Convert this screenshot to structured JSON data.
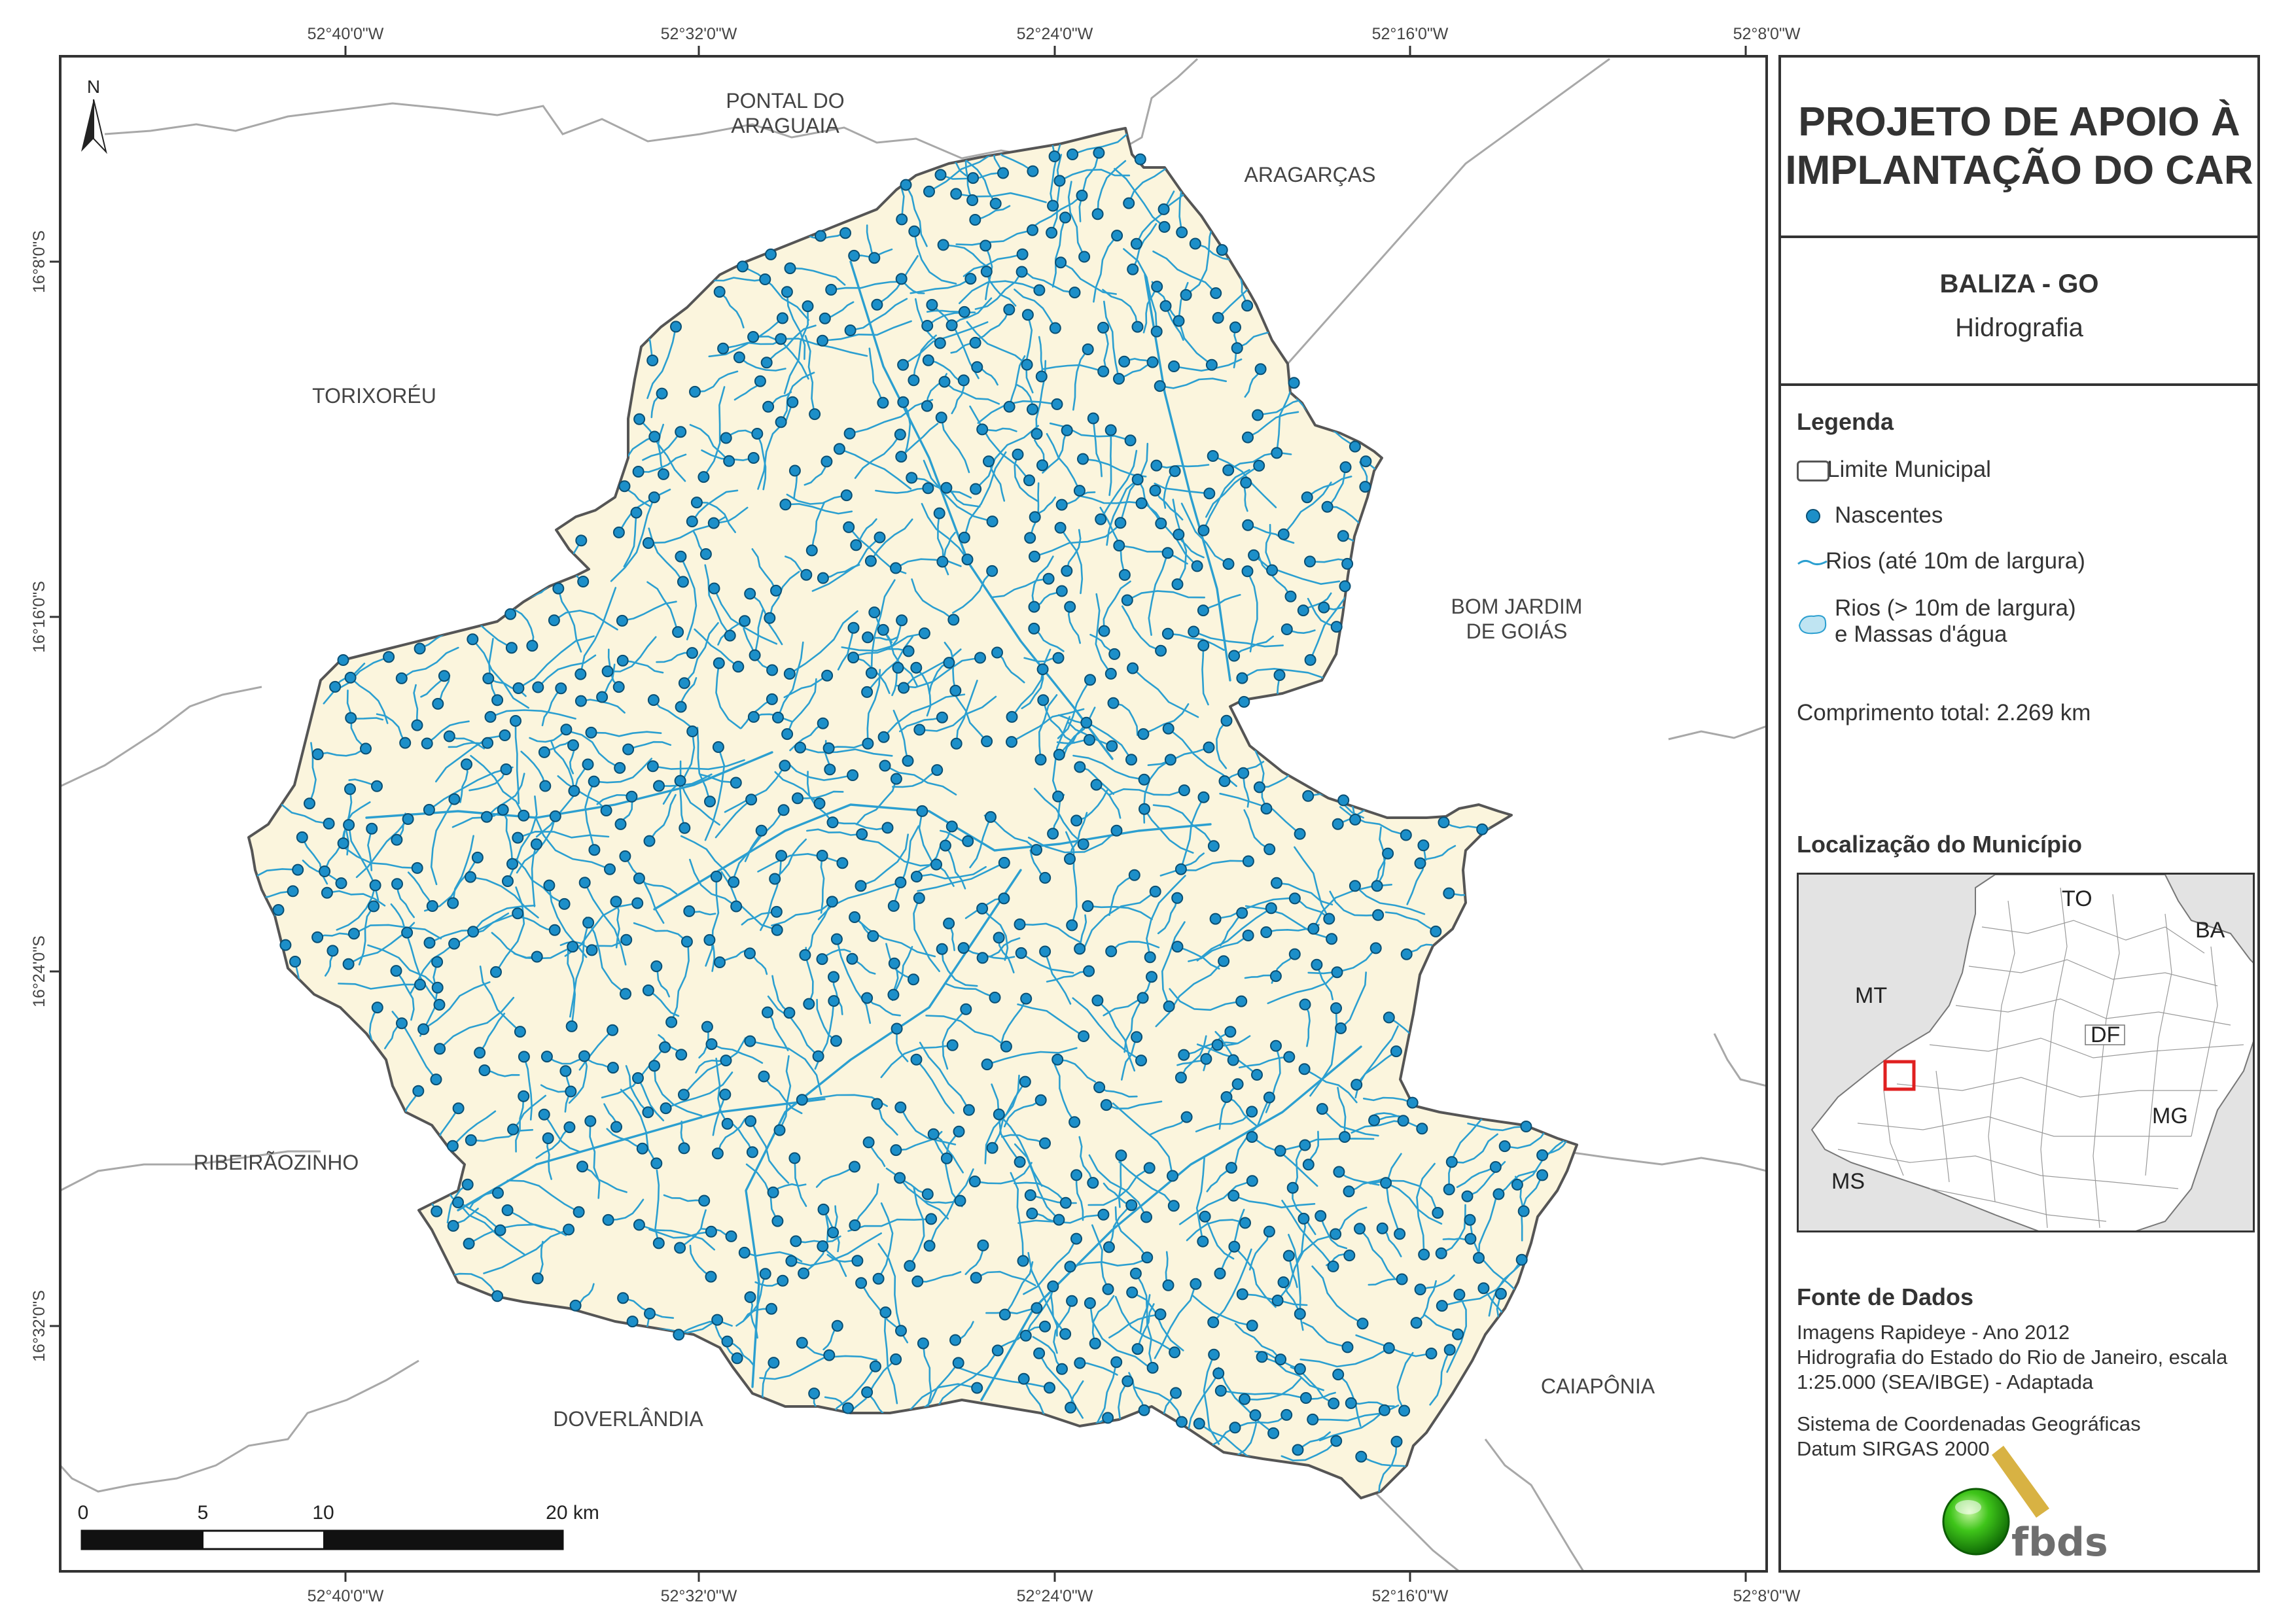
{
  "map": {
    "coord_labels_top": [
      "52°40'0\"W",
      "52°32'0\"W",
      "52°24'0\"W",
      "52°16'0\"W",
      "52°8'0\"W"
    ],
    "coord_labels_bottom": [
      "52°40'0\"W",
      "52°32'0\"W",
      "52°24'0\"W",
      "52°16'0\"W",
      "52°8'0\"W"
    ],
    "coord_labels_left": [
      "16°8'0\"S",
      "16°16'0\"S",
      "16°24'0\"S",
      "16°32'0\"S"
    ],
    "north_label": "N",
    "neighbors": {
      "pontal_line1": "PONTAL DO",
      "pontal_line2": "ARAGUAIA",
      "aragarcas": "ARAGARÇAS",
      "torixoreu": "TORIXORÉU",
      "bom_jardim_line1": "BOM JARDIM",
      "bom_jardim_line2": "DE GOIÁS",
      "ribeiraozinho": "RIBEIRÃOZINHO",
      "doverlandia": "DOVERLÂNDIA",
      "caiaponia": "CAIAPÔNIA"
    },
    "scale_bar": {
      "labels": [
        "0",
        "5",
        "10",
        "20 km"
      ]
    },
    "colors": {
      "municipality_fill": "#fbf5dd",
      "river": "#2b9fd0",
      "spring_fill": "#1c8fc9",
      "spring_stroke": "#0a4f73",
      "neighbor_border": "#a8a8a8"
    }
  },
  "panel": {
    "title_line1": "PROJETO DE APOIO À",
    "title_line2": "IMPLANTAÇÃO DO CAR",
    "municipality": "BALIZA - GO",
    "theme": "Hidrografia",
    "legend_heading": "Legenda",
    "legend": {
      "limit": "Limite Municipal",
      "springs": "Nascentes",
      "rivers_small": "Rios (até 10m de largura)",
      "rivers_large_line1": "Rios (> 10m de largura)",
      "rivers_large_line2": "e Massas d'água"
    },
    "total_length": "Comprimento total:  2.269 km",
    "location_heading": "Localização do Município",
    "inset_labels": {
      "to": "TO",
      "ba": "BA",
      "mt": "MT",
      "df": "DF",
      "mg": "MG",
      "ms": "MS"
    },
    "source_heading": "Fonte de Dados",
    "source_lines": [
      "Imagens Rapideye - Ano 2012",
      "Hidrografia do Estado do Rio de Janeiro, escala",
      "1:25.000 (SEA/IBGE) - Adaptada"
    ],
    "crs_lines": [
      "Sistema de Coordenadas Geográficas",
      "Datum SIRGAS 2000"
    ],
    "logo_text": "fbds"
  }
}
